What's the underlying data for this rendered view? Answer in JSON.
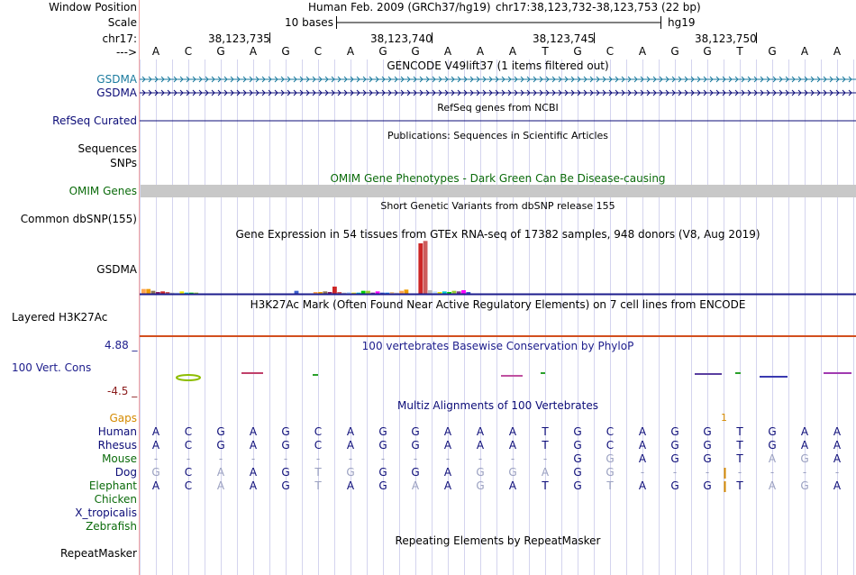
{
  "position": {
    "label": "Window Position",
    "assembly": "Human Feb. 2009 (GRCh37/hg19)",
    "coords": "chr17:38,123,732-38,123,753 (22 bp)"
  },
  "scale": {
    "label": "Scale",
    "bar_text": "10 bases",
    "db": "hg19"
  },
  "ruler": {
    "label": "chr17:",
    "ticks": [
      {
        "text": "38,123,735",
        "col": 3
      },
      {
        "text": "38,123,740",
        "col": 8
      },
      {
        "text": "38,123,745",
        "col": 13
      },
      {
        "text": "38,123,750",
        "col": 18
      }
    ]
  },
  "sequence": {
    "arrow_label": "--->",
    "bases": [
      "A",
      "C",
      "G",
      "A",
      "G",
      "C",
      "A",
      "G",
      "G",
      "A",
      "A",
      "A",
      "T",
      "G",
      "C",
      "A",
      "G",
      "G",
      "T",
      "G",
      "A",
      "A"
    ]
  },
  "gencode": {
    "title": "GENCODE V49lift37 (1 items filtered out)",
    "rows": [
      {
        "label": "GSDMA",
        "color": "#1a7a9e"
      },
      {
        "label": "GSDMA",
        "color": "#0c0c78"
      }
    ]
  },
  "refseq": {
    "label": "RefSeq Curated",
    "title": "RefSeq genes from NCBI",
    "color": "#0c0c78"
  },
  "publications": {
    "label_line1": "Sequences",
    "title": "Publications: Sequences in Scientific Articles"
  },
  "snps": {
    "label": "SNPs"
  },
  "omim": {
    "label": "OMIM Genes",
    "title": "OMIM Gene Phenotypes - Dark Green Can Be Disease-causing",
    "label_color": "#0b6b0b",
    "bar_color": "#c8c8c8"
  },
  "dbsnp": {
    "label": "Common dbSNP(155)",
    "title": "Short Genetic Variants from dbSNP release 155"
  },
  "gtex": {
    "label": "GSDMA",
    "title": "Gene Expression in 54 tissues from GTEx RNA-seq of 17382 samples, 948 donors (V8, Aug 2019)",
    "bar_colors": [
      "#ffa54f",
      "#ee9a00",
      "#8b7355",
      "#8b1c62",
      "#cd2626",
      "#cd5c5c",
      "#bfbfbf",
      "#c6e2ff",
      "#eeee00",
      "#00cdcd",
      "#00cd00",
      "#9acd32",
      "#7a378b",
      "#ff00ff",
      "#3a5fcd",
      "#1e90ff",
      "#eec591",
      "#d3d3d3"
    ],
    "values": [
      8,
      8,
      5,
      3,
      4,
      3,
      2,
      2,
      4,
      2,
      2,
      2,
      0,
      0,
      0,
      0,
      0,
      0,
      0,
      0,
      0,
      0,
      0,
      0,
      0,
      0,
      0,
      0,
      0,
      0,
      0,
      0,
      5,
      0,
      0,
      0,
      3,
      3,
      4,
      3,
      12,
      3,
      2,
      3,
      2,
      2,
      5,
      5,
      2,
      4,
      2,
      2,
      3,
      2,
      5,
      7,
      0,
      0,
      84,
      88,
      6,
      4,
      3,
      4,
      3,
      5,
      4,
      6,
      3,
      0,
      0,
      0,
      0,
      0,
      0,
      0
    ]
  },
  "h3k27ac": {
    "label": "Layered H3K27Ac",
    "title": "H3K27Ac Mark (Often Found Near Active Regulatory Elements) on 7 cell lines from ENCODE"
  },
  "phylop": {
    "label": "100 Vert. Cons",
    "max_label": "4.88 _",
    "min_label": "-4.5 _",
    "title": "100 vertebrates Basewise Conservation by PhyloP",
    "title_color": "#1d1d8c",
    "max_color": "#1d1d8c",
    "min_color": "#8b1c1c"
  },
  "multiz": {
    "title": "Multiz Alignments of 100 Vertebrates",
    "title_color": "#0c0c78",
    "gaps_label": "Gaps",
    "gaps_marker": "1",
    "gaps_color": "#d48a00",
    "species": [
      {
        "name": "Human",
        "color": "#0c0c78",
        "bases": [
          "A",
          "C",
          "G",
          "A",
          "G",
          "C",
          "A",
          "G",
          "G",
          "A",
          "A",
          "A",
          "T",
          "G",
          "C",
          "A",
          "G",
          "G",
          "T",
          "G",
          "A",
          "A"
        ]
      },
      {
        "name": "Rhesus",
        "color": "#0c0c78",
        "bases": [
          "A",
          "C",
          "G",
          "A",
          "G",
          "C",
          "A",
          "G",
          "G",
          "A",
          "A",
          "A",
          "T",
          "G",
          "C",
          "A",
          "G",
          "G",
          "T",
          "G",
          "A",
          "A"
        ]
      },
      {
        "name": "Mouse",
        "color": "#0b6b0b",
        "bases": [
          "-",
          "-",
          "-",
          "-",
          "-",
          "-",
          "-",
          "-",
          "-",
          "-",
          "-",
          "-",
          "-",
          "G",
          "G",
          "A",
          "G",
          "G",
          "T",
          "A",
          "G",
          "A"
        ]
      },
      {
        "name": "Dog",
        "color": "#0c0c78",
        "bases": [
          "G",
          "C",
          "A",
          "A",
          "G",
          "T",
          "G",
          "G",
          "G",
          "A",
          "G",
          "G",
          "A",
          "G",
          "G",
          "-",
          "-",
          "-",
          "-",
          "-",
          "-",
          "-"
        ]
      },
      {
        "name": "Elephant",
        "color": "#0b6b0b",
        "bases": [
          "A",
          "C",
          "A",
          "A",
          "G",
          "T",
          "A",
          "G",
          "A",
          "A",
          "G",
          "A",
          "T",
          "G",
          "T",
          "A",
          "G",
          "G",
          "T",
          "A",
          "G",
          "A"
        ]
      },
      {
        "name": "Chicken",
        "color": "#0b6b0b",
        "bases": []
      },
      {
        "name": "X_tropicalis",
        "color": "#0c0c78",
        "bases": []
      },
      {
        "name": "Zebrafish",
        "color": "#0b6b0b",
        "bases": []
      }
    ]
  },
  "repeatmasker": {
    "label": "RepeatMasker",
    "title": "Repeating Elements by RepeatMasker"
  }
}
